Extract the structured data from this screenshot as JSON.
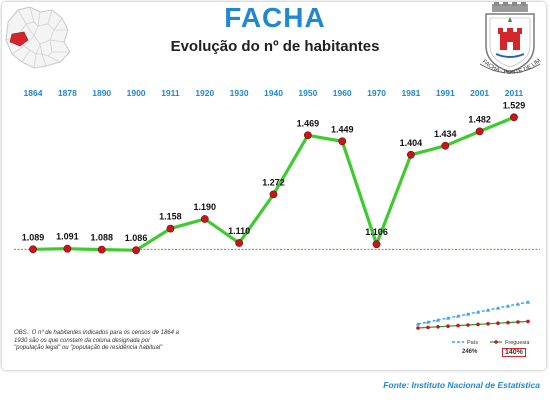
{
  "header": {
    "title": "FACHA",
    "subtitle": "Evolução do nº de habitantes",
    "crest_caption": "FACHA - PONTE DE LIMA"
  },
  "colors": {
    "title": "#1E88D4",
    "year_labels": "#1E88D4",
    "series_line": "#3DCB2D",
    "marker": "#C6161C",
    "reference_line": "#E23B2F",
    "pais_mini": "#3BA3E3",
    "source_text": "#1E88D4"
  },
  "chart_data": {
    "type": "line",
    "x": [
      "1864",
      "1878",
      "1890",
      "1900",
      "1911",
      "1920",
      "1930",
      "1940",
      "1950",
      "1960",
      "1970",
      "1981",
      "1991",
      "2001",
      "2011"
    ],
    "values": [
      1089,
      1091,
      1088,
      1086,
      1158,
      1190,
      1110,
      1272,
      1469,
      1449,
      1106,
      1404,
      1434,
      1482,
      1529
    ],
    "data_labels": [
      "1.089",
      "1.091",
      "1.088",
      "1.086",
      "1.158",
      "1.190",
      "1.110",
      "1.272",
      "1.469",
      "1.449",
      "1.106",
      "1.404",
      "1.434",
      "1.482",
      "1.529"
    ],
    "reference_value": 1089,
    "ylim": [
      900,
      1620
    ],
    "grid": false,
    "x_axis_position": "top"
  },
  "mini_chart": {
    "legend_pais": "País",
    "legend_freguesia": "Freguesia",
    "pais_growth": "246%",
    "freguesia_growth": "140%"
  },
  "footer": {
    "obs": "OBS.: O nº de habitantes indicados para os censos de 1864 a 1930 são os que constam da coluna designada por \"população legal\" ou \"população de residência habitual\"",
    "source": "Fonte: Instituto Nacional de Estatística"
  }
}
